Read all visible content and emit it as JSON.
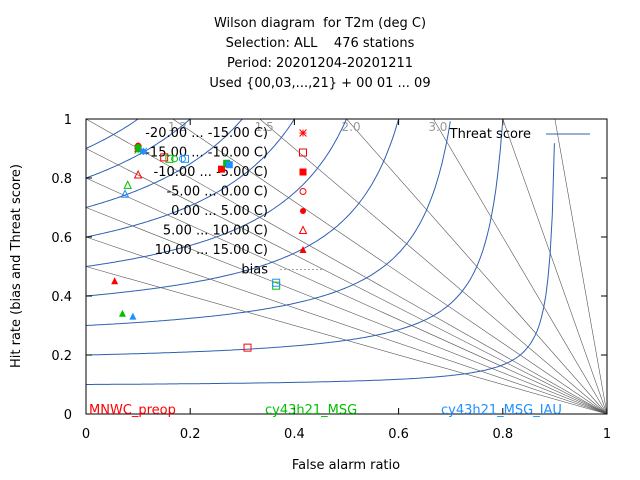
{
  "title_lines": [
    "Wilson diagram  for T2m (deg C)",
    "Selection: ALL    476 stations",
    "Period: 20201204-20201211",
    "Used {00,03,...,21} + 00 01 ... 09"
  ],
  "chart_data": {
    "type": "scatter",
    "xlabel": "False alarm ratio",
    "ylabel": "Hit rate (bias and Threat score)",
    "xlim": [
      0,
      1
    ],
    "ylim": [
      0,
      1
    ],
    "xticks": [
      "0",
      "0.2",
      "0.4",
      "0.6",
      "0.8",
      "1"
    ],
    "yticks": [
      "0",
      "0.2",
      "0.4",
      "0.6",
      "0.8",
      "1"
    ],
    "grid": false,
    "legend_position": "top-left",
    "threat_score_label": "Threat score",
    "threat_score_levels": [
      0.1,
      0.2,
      0.3,
      0.4,
      0.5,
      0.6,
      0.7,
      0.8,
      0.9
    ],
    "bias_label": "bias",
    "bias_levels": [
      0.5,
      0.6,
      0.7,
      0.8,
      0.9,
      1.0,
      1.2,
      1.5,
      2.0,
      3.0,
      5.0,
      10.0
    ],
    "bias_tick_labels": [
      {
        "bias": 1.2,
        "text": "1.2"
      },
      {
        "bias": 1.5,
        "text": "1.5"
      },
      {
        "bias": 2.0,
        "text": "2.0"
      },
      {
        "bias": 3.0,
        "text": "3.0"
      }
    ],
    "classes": [
      {
        "label": "-20.00 ... -15.00 C)",
        "symbol": "star"
      },
      {
        "label": "-15.00 ... -10.00 C)",
        "symbol": "open-square"
      },
      {
        "label": "-10.00 ... -5.00 C)",
        "symbol": "filled-square"
      },
      {
        "label": "-5.00 ... 0.00 C)",
        "symbol": "open-circle"
      },
      {
        "label": "0.00 ... 5.00 C)",
        "symbol": "filled-circle"
      },
      {
        "label": "5.00 ... 10.00 C)",
        "symbol": "open-triangle"
      },
      {
        "label": "10.00 ... 15.00 C)",
        "symbol": "filled-triangle"
      }
    ],
    "series": [
      {
        "name": "MNWC_preop",
        "color": "#ff0000",
        "points": [
          {
            "class": 0,
            "x": 0.1,
            "y": 0.9
          },
          {
            "class": 1,
            "x": 0.15,
            "y": 0.87
          },
          {
            "class": 2,
            "x": 0.26,
            "y": 0.83
          },
          {
            "class": 3,
            "x": 0.1,
            "y": 0.9
          },
          {
            "class": 4,
            "x": 0.1,
            "y": 0.91
          },
          {
            "class": 5,
            "x": 0.1,
            "y": 0.81
          },
          {
            "class": 6,
            "x": 0.055,
            "y": 0.45
          },
          {
            "class": 1,
            "x": 0.31,
            "y": 0.225
          }
        ]
      },
      {
        "name": "cy43h21_MSG",
        "color": "#00c000",
        "points": [
          {
            "class": 0,
            "x": 0.1,
            "y": 0.895
          },
          {
            "class": 1,
            "x": 0.16,
            "y": 0.865
          },
          {
            "class": 2,
            "x": 0.27,
            "y": 0.85
          },
          {
            "class": 3,
            "x": 0.17,
            "y": 0.865
          },
          {
            "class": 4,
            "x": 0.1,
            "y": 0.905
          },
          {
            "class": 5,
            "x": 0.08,
            "y": 0.775
          },
          {
            "class": 6,
            "x": 0.07,
            "y": 0.34
          },
          {
            "class": 1,
            "x": 0.365,
            "y": 0.435
          }
        ]
      },
      {
        "name": "cy43h21_MSG_IAU",
        "color": "#1e90ff",
        "points": [
          {
            "class": 0,
            "x": 0.11,
            "y": 0.89
          },
          {
            "class": 1,
            "x": 0.19,
            "y": 0.865
          },
          {
            "class": 2,
            "x": 0.275,
            "y": 0.845
          },
          {
            "class": 3,
            "x": 0.185,
            "y": 0.865
          },
          {
            "class": 4,
            "x": 0.11,
            "y": 0.89
          },
          {
            "class": 5,
            "x": 0.075,
            "y": 0.745
          },
          {
            "class": 6,
            "x": 0.09,
            "y": 0.33
          },
          {
            "class": 1,
            "x": 0.365,
            "y": 0.445
          }
        ]
      }
    ]
  }
}
